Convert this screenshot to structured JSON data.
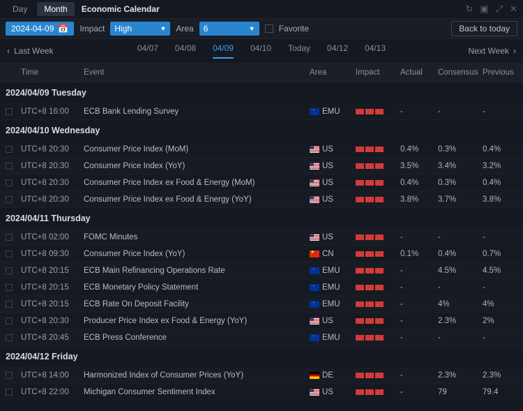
{
  "titlebar": {
    "tabs": [
      "Day",
      "Month"
    ],
    "active_tab": 1,
    "title": "Economic Calendar"
  },
  "filterbar": {
    "date": "2024-04-09",
    "impact_label": "Impact",
    "impact_value": "High",
    "area_label": "Area",
    "area_value": "6",
    "favorite_label": "Favorite",
    "back_label": "Back to today"
  },
  "weekbar": {
    "prev_label": "Last Week",
    "next_label": "Next Week",
    "days": [
      {
        "label": "04/07",
        "active": false
      },
      {
        "label": "04/08",
        "active": false
      },
      {
        "label": "04/09",
        "active": true
      },
      {
        "label": "04/10",
        "active": false
      },
      {
        "label": "Today",
        "active": false
      },
      {
        "label": "04/12",
        "active": false
      },
      {
        "label": "04/13",
        "active": false
      }
    ]
  },
  "columns": {
    "time": "Time",
    "event": "Event",
    "area": "Area",
    "impact": "Impact",
    "actual": "Actual",
    "consensus": "Consensus",
    "previous": "Previous"
  },
  "groups": [
    {
      "header": "2024/04/09 Tuesday",
      "rows": [
        {
          "time": "UTC+8 16:00",
          "event": "ECB Bank Lending Survey",
          "flag": "emu",
          "area": "EMU",
          "impact": 3,
          "actual": "-",
          "consensus": "-",
          "previous": "-"
        }
      ]
    },
    {
      "header": "2024/04/10 Wednesday",
      "rows": [
        {
          "time": "UTC+8 20:30",
          "event": "Consumer Price Index (MoM)",
          "flag": "us",
          "area": "US",
          "impact": 3,
          "actual": "0.4%",
          "consensus": "0.3%",
          "previous": "0.4%"
        },
        {
          "time": "UTC+8 20:30",
          "event": "Consumer Price Index (YoY)",
          "flag": "us",
          "area": "US",
          "impact": 3,
          "actual": "3.5%",
          "consensus": "3.4%",
          "previous": "3.2%"
        },
        {
          "time": "UTC+8 20:30",
          "event": "Consumer Price Index ex Food & Energy (MoM)",
          "flag": "us",
          "area": "US",
          "impact": 3,
          "actual": "0.4%",
          "consensus": "0.3%",
          "previous": "0.4%"
        },
        {
          "time": "UTC+8 20:30",
          "event": "Consumer Price Index ex Food & Energy (YoY)",
          "flag": "us",
          "area": "US",
          "impact": 3,
          "actual": "3.8%",
          "consensus": "3.7%",
          "previous": "3.8%"
        }
      ]
    },
    {
      "header": "2024/04/11 Thursday",
      "rows": [
        {
          "time": "UTC+8 02:00",
          "event": "FOMC Minutes",
          "flag": "us",
          "area": "US",
          "impact": 3,
          "actual": "-",
          "consensus": "-",
          "previous": "-"
        },
        {
          "time": "UTC+8 09:30",
          "event": "Consumer Price Index (YoY)",
          "flag": "cn",
          "area": "CN",
          "impact": 3,
          "actual": "0.1%",
          "consensus": "0.4%",
          "previous": "0.7%"
        },
        {
          "time": "UTC+8 20:15",
          "event": "ECB Main Refinancing Operations Rate",
          "flag": "emu",
          "area": "EMU",
          "impact": 3,
          "actual": "-",
          "consensus": "4.5%",
          "previous": "4.5%"
        },
        {
          "time": "UTC+8 20:15",
          "event": "ECB Monetary Policy Statement",
          "flag": "emu",
          "area": "EMU",
          "impact": 3,
          "actual": "-",
          "consensus": "-",
          "previous": "-"
        },
        {
          "time": "UTC+8 20:15",
          "event": "ECB Rate On Deposit Facility",
          "flag": "emu",
          "area": "EMU",
          "impact": 3,
          "actual": "-",
          "consensus": "4%",
          "previous": "4%"
        },
        {
          "time": "UTC+8 20:30",
          "event": "Producer Price Index ex Food & Energy (YoY)",
          "flag": "us",
          "area": "US",
          "impact": 3,
          "actual": "-",
          "consensus": "2.3%",
          "previous": "2%"
        },
        {
          "time": "UTC+8 20:45",
          "event": "ECB Press Conference",
          "flag": "emu",
          "area": "EMU",
          "impact": 3,
          "actual": "-",
          "consensus": "-",
          "previous": "-"
        }
      ]
    },
    {
      "header": "2024/04/12 Friday",
      "rows": [
        {
          "time": "UTC+8 14:00",
          "event": "Harmonized Index of Consumer Prices (YoY)",
          "flag": "de",
          "area": "DE",
          "impact": 3,
          "actual": "-",
          "consensus": "2.3%",
          "previous": "2.3%"
        },
        {
          "time": "UTC+8 22:00",
          "event": "Michigan Consumer Sentiment Index",
          "flag": "us",
          "area": "US",
          "impact": 3,
          "actual": "-",
          "consensus": "79",
          "previous": "79.4"
        }
      ]
    }
  ]
}
